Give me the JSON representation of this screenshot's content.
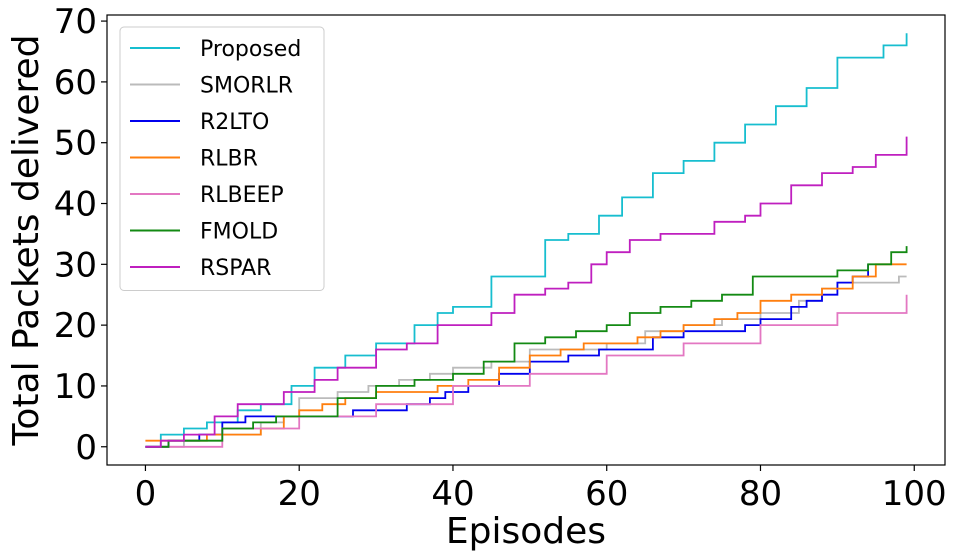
{
  "chart_data": {
    "type": "line",
    "title": "",
    "xlabel": "Episodes",
    "ylabel": "Total Packets delivered",
    "xlim": [
      -5,
      104
    ],
    "ylim": [
      -3,
      71
    ],
    "xticks": [
      0,
      20,
      40,
      60,
      80,
      100
    ],
    "yticks": [
      0,
      10,
      20,
      30,
      40,
      50,
      60,
      70
    ],
    "grid": false,
    "legend_position": "top-left",
    "series": [
      {
        "name": "Proposed",
        "color": "#17becf",
        "x": [
          0,
          2,
          5,
          8,
          12,
          15,
          19,
          22,
          26,
          30,
          35,
          38,
          40,
          45,
          52,
          55,
          59,
          62,
          66,
          70,
          74,
          78,
          82,
          86,
          90,
          94,
          96,
          99
        ],
        "y": [
          0,
          2,
          3,
          4,
          6,
          7,
          10,
          13,
          15,
          17,
          20,
          22,
          23,
          28,
          34,
          35,
          38,
          41,
          45,
          47,
          50,
          53,
          56,
          59,
          64,
          64,
          66,
          68
        ]
      },
      {
        "name": "SMORLR",
        "color": "#bbbbbb",
        "x": [
          0,
          5,
          10,
          15,
          18,
          20,
          25,
          29,
          33,
          37,
          40,
          45,
          50,
          55,
          60,
          65,
          70,
          75,
          80,
          85,
          88,
          90,
          93,
          96,
          98,
          99
        ],
        "y": [
          0,
          1,
          2,
          4,
          5,
          8,
          9,
          10,
          11,
          12,
          13,
          14,
          16,
          16,
          17,
          19,
          20,
          21,
          22,
          24,
          26,
          27,
          27,
          27,
          28,
          28
        ]
      },
      {
        "name": "R2LTO",
        "color": "#0000ee",
        "x": [
          0,
          3,
          7,
          10,
          13,
          17,
          20,
          23,
          27,
          30,
          34,
          37,
          39,
          42,
          46,
          50,
          55,
          59,
          62,
          66,
          70,
          74,
          76,
          78,
          80,
          84,
          86,
          88,
          90,
          92,
          94
        ],
        "y": [
          0,
          1,
          2,
          4,
          5,
          5,
          5,
          5,
          6,
          6,
          7,
          8,
          9,
          10,
          12,
          14,
          15,
          16,
          16,
          18,
          19,
          19,
          19,
          20,
          21,
          23,
          24,
          25,
          27,
          28,
          30
        ]
      },
      {
        "name": "RLBR",
        "color": "#ff7f0e",
        "x": [
          0,
          3,
          5,
          8,
          12,
          15,
          18,
          20,
          23,
          26,
          30,
          34,
          38,
          42,
          46,
          50,
          54,
          57,
          60,
          64,
          67,
          70,
          74,
          77,
          80,
          84,
          88,
          90,
          92,
          95,
          99
        ],
        "y": [
          1,
          1,
          1,
          2,
          2,
          3,
          5,
          6,
          7,
          8,
          9,
          9,
          10,
          11,
          13,
          15,
          16,
          17,
          17,
          18,
          19,
          20,
          21,
          22,
          24,
          25,
          26,
          26,
          28,
          30,
          30
        ]
      },
      {
        "name": "RLBEEP",
        "color": "#e377c2",
        "x": [
          0,
          10,
          20,
          30,
          40,
          50,
          60,
          70,
          80,
          90,
          99
        ],
        "y": [
          0,
          3,
          5,
          7,
          10,
          12,
          15,
          17,
          20,
          22,
          25
        ]
      },
      {
        "name": "FMOLD",
        "color": "#138a13",
        "x": [
          0,
          3,
          8,
          10,
          14,
          17,
          21,
          25,
          30,
          35,
          40,
          44,
          48,
          52,
          56,
          60,
          63,
          67,
          71,
          75,
          79,
          83,
          87,
          90,
          94,
          97,
          99
        ],
        "y": [
          0,
          1,
          1,
          3,
          4,
          5,
          5,
          8,
          10,
          11,
          12,
          14,
          17,
          18,
          19,
          20,
          22,
          23,
          24,
          25,
          28,
          28,
          28,
          29,
          30,
          32,
          33
        ]
      },
      {
        "name": "RSPAR",
        "color": "#bf1fbf",
        "x": [
          0,
          2,
          5,
          9,
          12,
          15,
          18,
          22,
          25,
          30,
          34,
          38,
          41,
          45,
          48,
          52,
          55,
          58,
          60,
          63,
          67,
          70,
          74,
          78,
          80,
          84,
          88,
          90,
          92,
          95,
          99
        ],
        "y": [
          0,
          1,
          2,
          5,
          7,
          7,
          9,
          11,
          13,
          16,
          17,
          20,
          20,
          22,
          25,
          26,
          27,
          30,
          32,
          34,
          35,
          35,
          37,
          38,
          40,
          43,
          45,
          45,
          46,
          48,
          51
        ]
      }
    ]
  }
}
